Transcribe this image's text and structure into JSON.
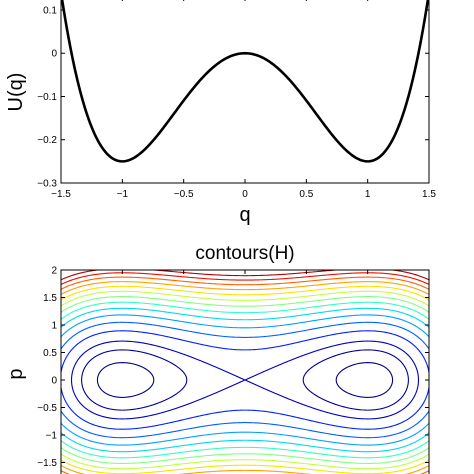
{
  "chart_data": [
    {
      "type": "line",
      "title": "",
      "xlabel": "q",
      "ylabel": "U(q)",
      "xlim": [
        -1.5,
        1.5
      ],
      "ylim": [
        -0.3,
        0.13
      ],
      "xticks": [
        "−1.5",
        "−1",
        "−0.5",
        "0",
        "0.5",
        "1",
        "1.5"
      ],
      "xtick_values": [
        -1.5,
        -1,
        -0.5,
        0,
        0.5,
        1,
        1.5
      ],
      "yticks": [
        "−0.3",
        "−0.2",
        "−0.1",
        "0",
        "0.1"
      ],
      "ytick_values": [
        -0.3,
        -0.2,
        -0.1,
        0,
        0.1
      ],
      "grid": false,
      "series": [
        {
          "color": "#000000",
          "x": [
            -1.5,
            -1.4,
            -1.3,
            -1.2,
            -1.1,
            -1.0,
            -0.9,
            -0.8,
            -0.7,
            -0.6,
            -0.5,
            -0.4,
            -0.3,
            -0.2,
            -0.1,
            0.0,
            0.1,
            0.2,
            0.3,
            0.4,
            0.5,
            0.6,
            0.7,
            0.8,
            0.9,
            1.0,
            1.1,
            1.2,
            1.3,
            1.4,
            1.5
          ],
          "values": [
            0.1406,
            0.0204,
            -0.081,
            -0.1584,
            -0.229,
            -0.25,
            -0.241,
            -0.2176,
            -0.185,
            -0.1476,
            -0.1094,
            -0.0736,
            -0.043,
            -0.0196,
            -0.005,
            0.0,
            -0.005,
            -0.0196,
            -0.043,
            -0.0736,
            -0.1094,
            -0.1476,
            -0.185,
            -0.2176,
            -0.241,
            -0.25,
            -0.229,
            -0.1584,
            -0.081,
            0.0204,
            0.1406
          ]
        }
      ]
    },
    {
      "type": "line",
      "title": "contours(H)",
      "xlabel": "",
      "ylabel": "p",
      "xlim": [
        -1.5,
        1.5
      ],
      "ylim": [
        -2,
        2
      ],
      "yticks": [
        "−1.5",
        "−1",
        "−0.5",
        "0",
        "0.5",
        "1",
        "1.5",
        "2"
      ],
      "ytick_values": [
        -1.5,
        -1,
        -0.5,
        0,
        0.5,
        1,
        1.5,
        2
      ],
      "grid": false,
      "function": "H = p^2/2 + q^4/4 - q^2/2",
      "levels": [
        -0.2,
        -0.1,
        0,
        0.15,
        0.3,
        0.45,
        0.6,
        0.75,
        0.9,
        1.05,
        1.2,
        1.35,
        1.5,
        1.65,
        1.8
      ],
      "level_colors": [
        "#00007f",
        "#00009a",
        "#0000c0",
        "#0020ff",
        "#0060ff",
        "#00a0ff",
        "#00d8f0",
        "#30ffc0",
        "#80ff80",
        "#c0ff40",
        "#ffe000",
        "#ffa000",
        "#ff6000",
        "#e81000",
        "#b00000"
      ]
    }
  ]
}
